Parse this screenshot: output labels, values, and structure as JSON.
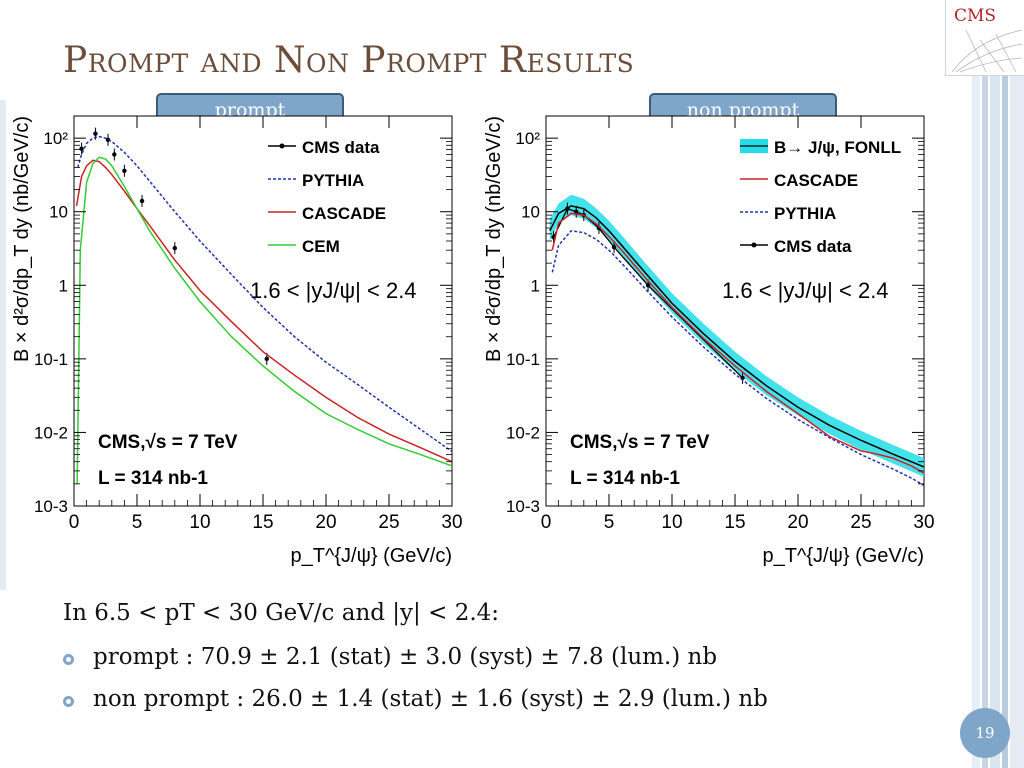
{
  "slide": {
    "title": "Prompt and Non Prompt Results",
    "logo_text": "CMS",
    "page_number": "19",
    "tag_left": "prompt",
    "tag_right": "non prompt",
    "summary_intro": "In 6.5 < pT < 30 GeV/c and |y| < 2.4:",
    "bullets": [
      "prompt : 70.9 ± 2.1 (stat) ± 3.0 (syst) ± 7.8 (lum.) nb",
      "non prompt : 26.0 ± 1.4 (stat) ± 1.6 (syst) ± 2.9 (lum.) nb"
    ],
    "colors": {
      "title": "#6b4d3a",
      "accent": "#7fa6c8",
      "accent_dark": "#3b5b7a",
      "cms_red": "#b22222"
    }
  },
  "chart_data": [
    {
      "type": "line",
      "panel": "prompt",
      "xlabel": "p_T^{J/ψ} (GeV/c)",
      "ylabel": "B × d²σ/dp_T dy (nb/GeV/c)",
      "xlim": [
        0,
        30
      ],
      "ylim": [
        0.001,
        200
      ],
      "yscale": "log",
      "xticks": [
        0,
        5,
        10,
        15,
        20,
        25,
        30
      ],
      "yticks": [
        {
          "value": 0.001,
          "label": "10-3"
        },
        {
          "value": 0.01,
          "label": "10-2"
        },
        {
          "value": 0.1,
          "label": "10-1"
        },
        {
          "value": 1,
          "label": "1"
        },
        {
          "value": 10,
          "label": "10"
        },
        {
          "value": 100,
          "label": "10²"
        }
      ],
      "annotations": [
        "1.6 < |yJ/ψ| < 2.4",
        "CMS,√s = 7 TeV",
        "L = 314 nb-1"
      ],
      "legend": [
        "CMS data",
        "PYTHIA",
        "CASCADE",
        "CEM"
      ],
      "legend_position": "top-right",
      "series": [
        {
          "name": "CMS data",
          "color": "#000000",
          "style": "points",
          "x": [
            0.6,
            1.7,
            2.7,
            3.2,
            4.0,
            5.4,
            8.0,
            15.3
          ],
          "y": [
            72,
            115,
            95,
            60,
            36,
            14,
            3.2,
            0.1
          ]
        },
        {
          "name": "PYTHIA",
          "color": "#2233aa",
          "style": "dotted",
          "x": [
            0.3,
            0.6,
            1.0,
            1.5,
            2.0,
            2.5,
            3.0,
            4.0,
            5.0,
            6.0,
            8.0,
            10.0,
            12.5,
            15.0,
            17.5,
            20.0,
            22.5,
            25.0,
            27.5,
            30.0
          ],
          "y": [
            40,
            60,
            85,
            100,
            105,
            100,
            90,
            64,
            42,
            26,
            10,
            4.0,
            1.4,
            0.5,
            0.2,
            0.09,
            0.045,
            0.022,
            0.011,
            0.0055
          ]
        },
        {
          "name": "CASCADE",
          "color": "#cc2222",
          "style": "solid",
          "x": [
            0.2,
            0.6,
            1.0,
            1.5,
            2.0,
            2.5,
            3.0,
            4.0,
            5.0,
            6.0,
            8.0,
            10.0,
            12.5,
            15.0,
            17.5,
            20.0,
            22.5,
            25.0,
            27.5,
            30.0
          ],
          "y": [
            12,
            30,
            42,
            50,
            48,
            40,
            32,
            19,
            11,
            6.5,
            2.2,
            0.85,
            0.32,
            0.125,
            0.06,
            0.03,
            0.016,
            0.0095,
            0.0062,
            0.004
          ]
        },
        {
          "name": "CEM",
          "color": "#33cc33",
          "style": "solid",
          "x": [
            0.25,
            0.5,
            1.0,
            1.5,
            2.0,
            2.5,
            3.0,
            4.0,
            5.0,
            6.0,
            8.0,
            10.0,
            12.5,
            15.0,
            17.5,
            20.0,
            22.5,
            25.0,
            27.5,
            30.0
          ],
          "y": [
            0.002,
            3,
            25,
            45,
            55,
            52,
            42,
            22,
            11,
            5.5,
            1.7,
            0.6,
            0.2,
            0.08,
            0.036,
            0.018,
            0.011,
            0.007,
            0.005,
            0.0035
          ]
        }
      ]
    },
    {
      "type": "line",
      "panel": "non prompt",
      "xlabel": "p_T^{J/ψ} (GeV/c)",
      "ylabel": "B × d²σ/dp_T dy (nb/GeV/c)",
      "xlim": [
        0,
        30
      ],
      "ylim": [
        0.001,
        200
      ],
      "yscale": "log",
      "xticks": [
        0,
        5,
        10,
        15,
        20,
        25,
        30
      ],
      "yticks": [
        {
          "value": 0.001,
          "label": "10-3"
        },
        {
          "value": 0.01,
          "label": "10-2"
        },
        {
          "value": 0.1,
          "label": "10-1"
        },
        {
          "value": 1,
          "label": "1"
        },
        {
          "value": 10,
          "label": "10"
        },
        {
          "value": 100,
          "label": "10²"
        }
      ],
      "annotations": [
        "1.6 < |yJ/ψ| < 2.4",
        "CMS,√s = 7 TeV",
        "L = 314 nb-1"
      ],
      "legend": [
        "B→ J/ψ, FONLL",
        "CASCADE",
        "PYTHIA",
        "CMS data"
      ],
      "legend_position": "top-right",
      "band": {
        "name": "B→ J/ψ, FONLL",
        "color": "#22dde8",
        "x": [
          0.3,
          1.0,
          2.0,
          3.0,
          4.0,
          5.0,
          6.0,
          8.0,
          10.0,
          12.5,
          15.0,
          17.5,
          20.0,
          22.5,
          25.0,
          27.5,
          30.0
        ],
        "low": [
          4,
          7,
          9,
          8,
          6,
          4,
          2.6,
          1.0,
          0.42,
          0.16,
          0.068,
          0.032,
          0.017,
          0.0095,
          0.0058,
          0.0038,
          0.0025
        ],
        "high": [
          8,
          13,
          17,
          15,
          11,
          7.5,
          4.8,
          1.9,
          0.78,
          0.3,
          0.125,
          0.058,
          0.03,
          0.017,
          0.0105,
          0.0068,
          0.0045
        ]
      },
      "series": [
        {
          "name": "CMS data",
          "color": "#000000",
          "style": "points",
          "x": [
            0.6,
            1.7,
            2.4,
            3.0,
            4.2,
            5.4,
            8.1,
            15.6
          ],
          "y": [
            4.5,
            11,
            10,
            9,
            6,
            3.3,
            1.0,
            0.055
          ],
          "line": true
        },
        {
          "name": "CASCADE",
          "color": "#cc2222",
          "style": "solid",
          "x": [
            0.5,
            1.0,
            2.0,
            3.0,
            4.0,
            5.0,
            6.0,
            8.0,
            10.0,
            12.5,
            15.0,
            17.5,
            20.0,
            22.5,
            25.0,
            26.0,
            27.5,
            29.0,
            30.0
          ],
          "y": [
            3,
            7,
            9.5,
            9,
            6.8,
            4.6,
            3.0,
            1.2,
            0.5,
            0.19,
            0.08,
            0.036,
            0.018,
            0.0088,
            0.0056,
            0.0052,
            0.0045,
            0.0035,
            0.0028
          ]
        },
        {
          "name": "PYTHIA",
          "color": "#2233aa",
          "style": "dotted",
          "x": [
            0.5,
            1.0,
            2.0,
            3.0,
            4.0,
            5.0,
            6.0,
            8.0,
            10.0,
            12.5,
            15.0,
            17.5,
            20.0,
            22.5,
            25.0,
            27.5,
            29.0,
            30.0
          ],
          "y": [
            1.5,
            3.5,
            5.5,
            5.2,
            4.2,
            3.0,
            2.0,
            0.85,
            0.37,
            0.145,
            0.062,
            0.029,
            0.015,
            0.0085,
            0.005,
            0.0032,
            0.0024,
            0.0019
          ]
        },
        {
          "name": "FONLL central",
          "color": "#000000",
          "style": "solid",
          "x": [
            0.3,
            1.0,
            2.0,
            3.0,
            4.0,
            5.0,
            6.0,
            8.0,
            10.0,
            12.5,
            15.0,
            17.5,
            20.0,
            22.5,
            25.0,
            27.5,
            30.0
          ],
          "y": [
            5.5,
            9.5,
            12,
            11,
            8.2,
            5.5,
            3.5,
            1.4,
            0.57,
            0.22,
            0.092,
            0.043,
            0.022,
            0.0125,
            0.0078,
            0.0051,
            0.0034
          ]
        }
      ]
    }
  ]
}
